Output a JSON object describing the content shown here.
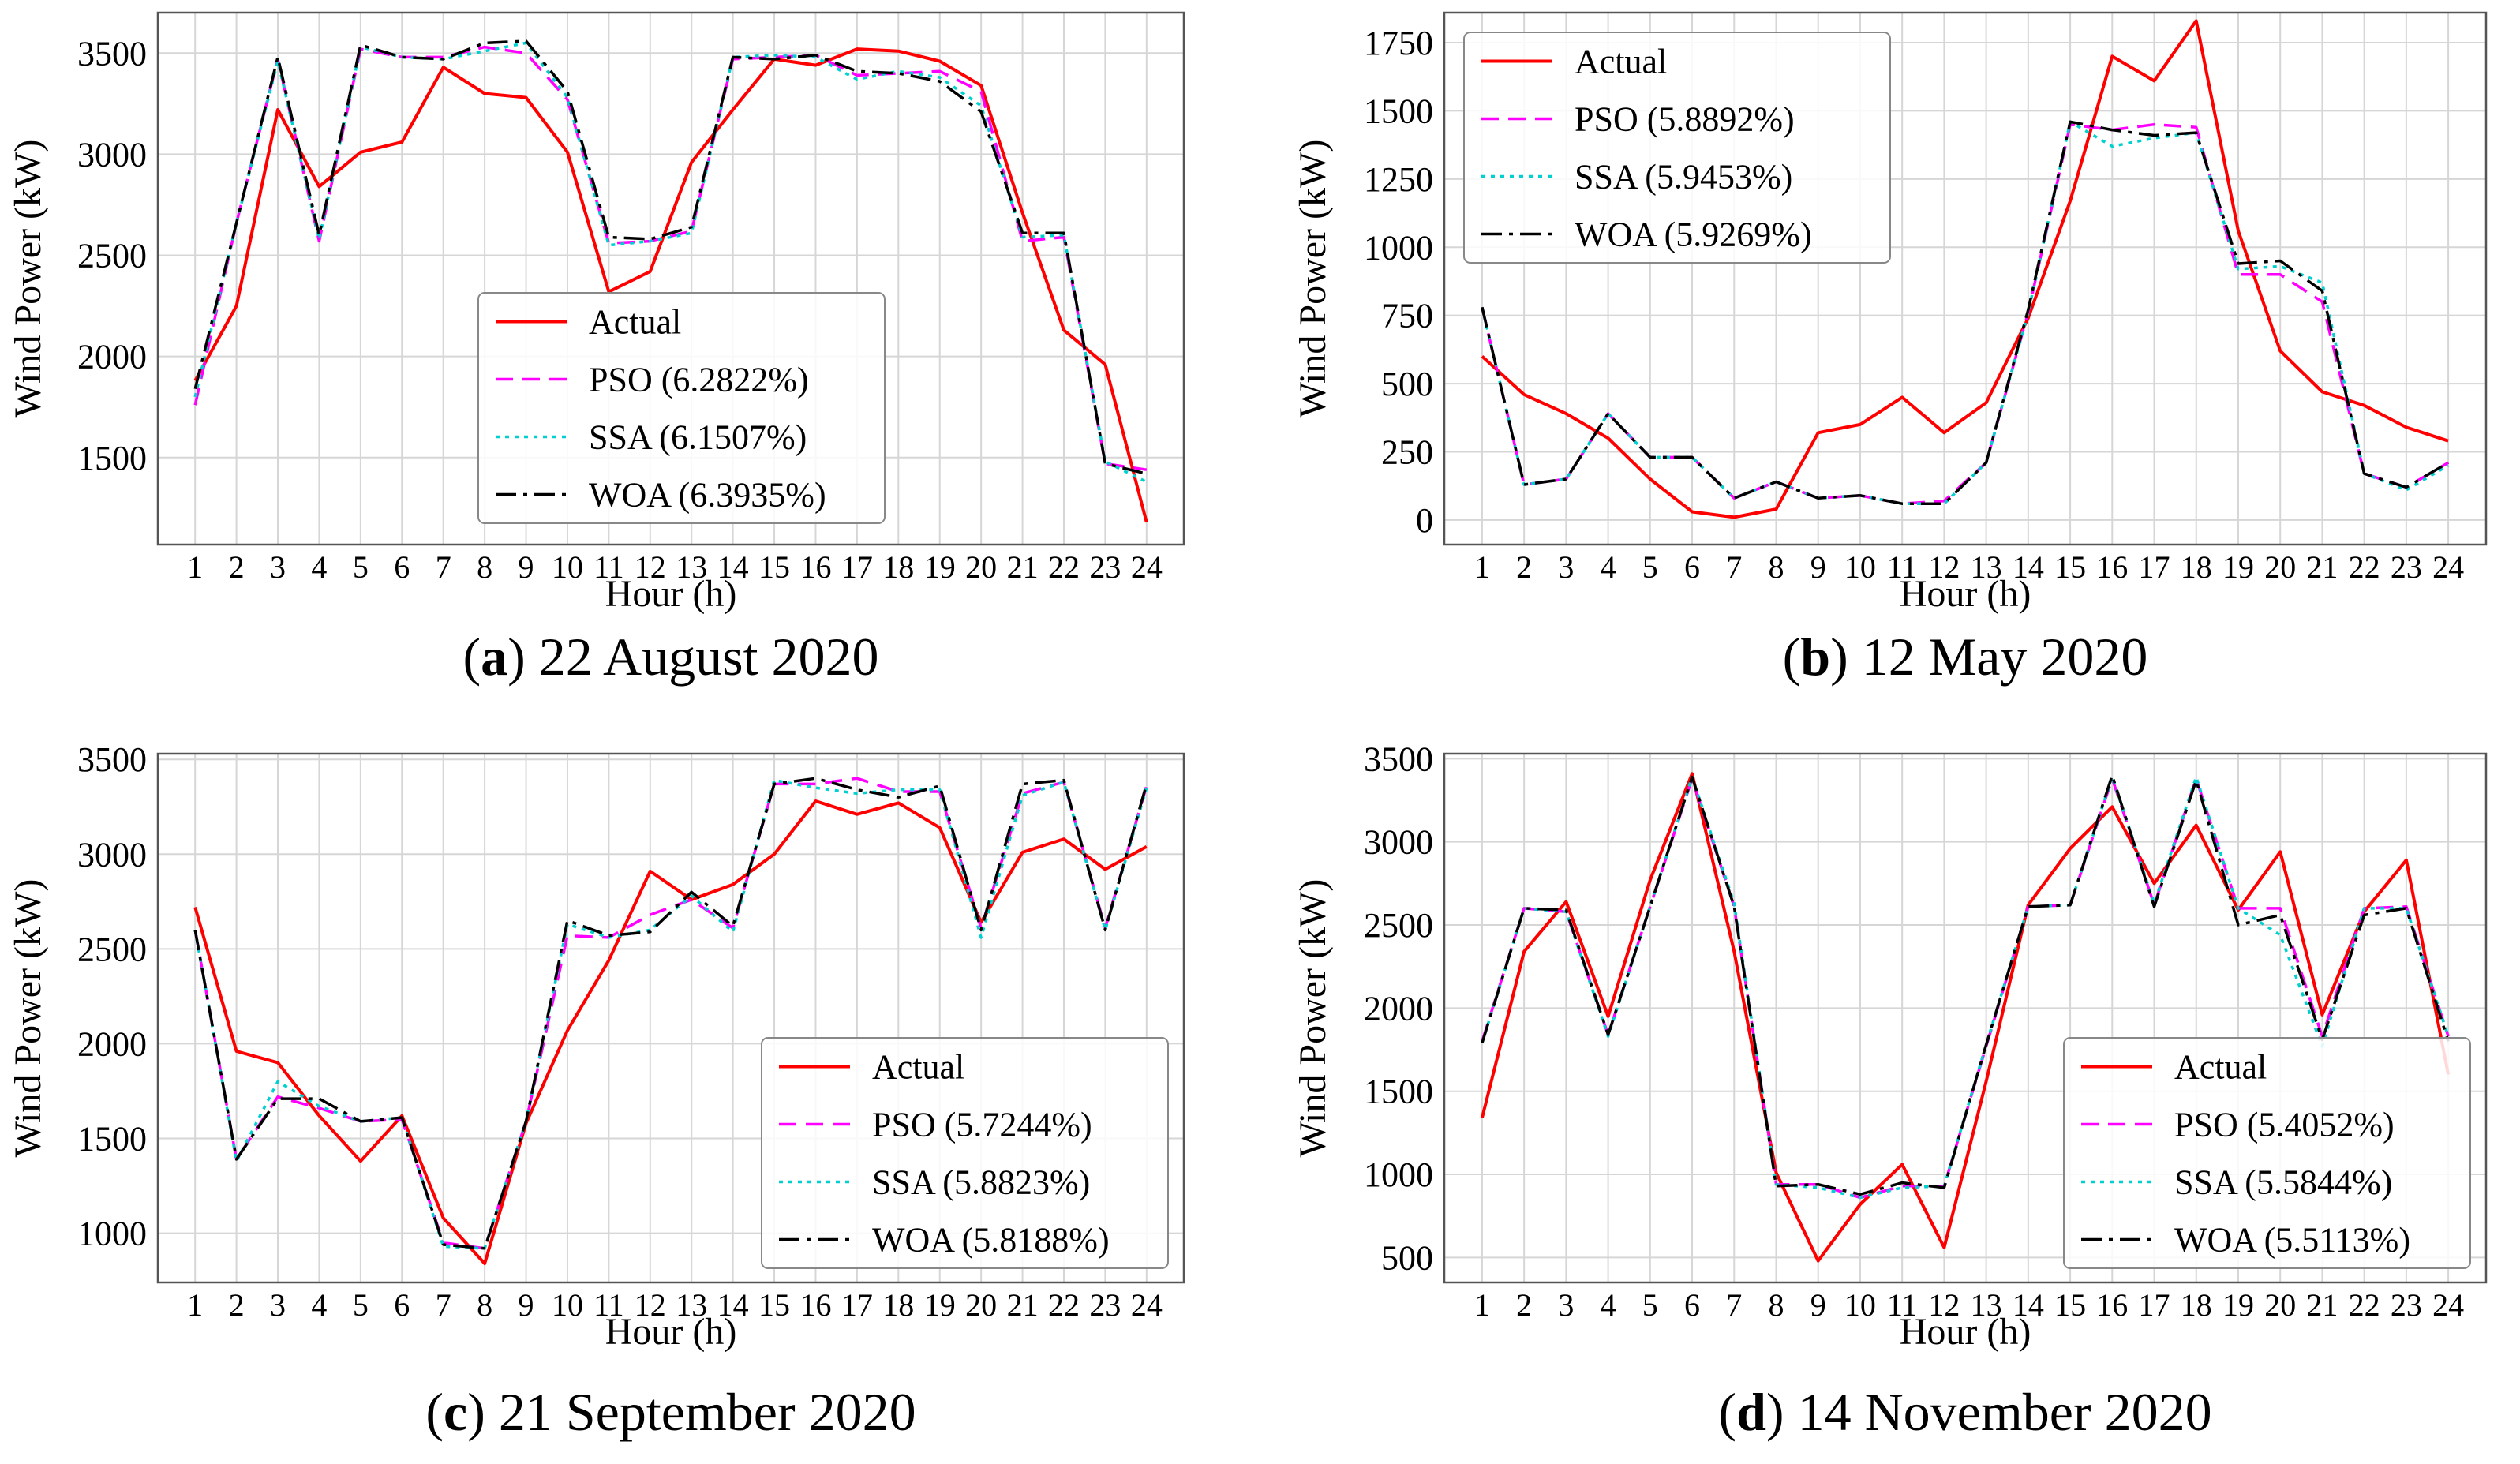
{
  "panels": [
    {
      "id": "a",
      "caption_letter": "a",
      "caption_text": " 22 August 2020",
      "chart_data": {
        "type": "line",
        "xlabel": "Hour (h)",
        "ylabel": "Wind Power (kW)",
        "x": [
          1,
          2,
          3,
          4,
          5,
          6,
          7,
          8,
          9,
          10,
          11,
          12,
          13,
          14,
          15,
          16,
          17,
          18,
          19,
          20,
          21,
          22,
          23,
          24
        ],
        "xlim": [
          0.1,
          24.9
        ],
        "ylim": [
          1070,
          3700
        ],
        "yticks": [
          1500,
          2000,
          2500,
          3000,
          3500
        ],
        "grid": true,
        "legend_position": "lower-center",
        "series": [
          {
            "name": "Actual",
            "label": "Actual",
            "color": "#ff0000",
            "dash": "solid",
            "values": [
              1880,
              2250,
              3220,
              2840,
              3010,
              3060,
              3430,
              3300,
              3280,
              3010,
              2320,
              2420,
              2960,
              3220,
              3470,
              3440,
              3520,
              3510,
              3460,
              3340,
              2710,
              2130,
              1960,
              1180
            ]
          },
          {
            "name": "PSO",
            "label": "PSO (6.2822%)",
            "color": "#ff00ff",
            "dash": "dashed",
            "values": [
              1760,
              2660,
              3470,
              2570,
              3520,
              3480,
              3480,
              3530,
              3500,
              3270,
              2560,
              2570,
              2620,
              3470,
              3480,
              3490,
              3390,
              3400,
              3410,
              3310,
              2570,
              2590,
              1470,
              1440
            ]
          },
          {
            "name": "SSA",
            "label": "SSA (6.1507%)",
            "color": "#00d0d0",
            "dash": "dotted",
            "values": [
              1800,
              2660,
              3460,
              2580,
              3530,
              3480,
              3470,
              3510,
              3550,
              3280,
              2550,
              2570,
              2610,
              3480,
              3490,
              3480,
              3370,
              3410,
              3380,
              3240,
              2590,
              2600,
              1480,
              1380
            ]
          },
          {
            "name": "WOA",
            "label": "WOA (6.3935%)",
            "color": "#000000",
            "dash": "dashdot",
            "values": [
              1840,
              2660,
              3480,
              2600,
              3540,
              3480,
              3470,
              3550,
              3560,
              3310,
              2590,
              2580,
              2640,
              3480,
              3470,
              3490,
              3410,
              3400,
              3360,
              3210,
              2610,
              2610,
              1470,
              1420
            ]
          }
        ]
      }
    },
    {
      "id": "b",
      "caption_letter": "b",
      "caption_text": " 12 May 2020",
      "chart_data": {
        "type": "line",
        "xlabel": "Hour (h)",
        "ylabel": "Wind Power (kW)",
        "x": [
          1,
          2,
          3,
          4,
          5,
          6,
          7,
          8,
          9,
          10,
          11,
          12,
          13,
          14,
          15,
          16,
          17,
          18,
          19,
          20,
          21,
          22,
          23,
          24
        ],
        "xlim": [
          0.1,
          24.9
        ],
        "ylim": [
          -90,
          1860
        ],
        "yticks": [
          0,
          250,
          500,
          750,
          1000,
          1250,
          1500,
          1750
        ],
        "grid": true,
        "legend_position": "top-left",
        "series": [
          {
            "name": "Actual",
            "label": "Actual",
            "color": "#ff0000",
            "dash": "solid",
            "values": [
              600,
              460,
              390,
              300,
              150,
              30,
              10,
              40,
              320,
              350,
              450,
              320,
              430,
              740,
              1170,
              1700,
              1610,
              1830,
              1060,
              620,
              470,
              420,
              340,
              290
            ]
          },
          {
            "name": "PSO",
            "label": "PSO (5.8892%)",
            "color": "#ff00ff",
            "dash": "dashed",
            "values": [
              780,
              130,
              150,
              390,
              230,
              230,
              80,
              140,
              80,
              90,
              60,
              70,
              210,
              760,
              1450,
              1430,
              1450,
              1440,
              900,
              900,
              800,
              170,
              120,
              210
            ]
          },
          {
            "name": "SSA",
            "label": "SSA (5.9453%)",
            "color": "#00d0d0",
            "dash": "dotted",
            "values": [
              780,
              130,
              150,
              390,
              230,
              230,
              80,
              140,
              80,
              90,
              60,
              60,
              210,
              760,
              1460,
              1370,
              1400,
              1420,
              920,
              930,
              870,
              170,
              110,
              200
            ]
          },
          {
            "name": "WOA",
            "label": "WOA (5.9269%)",
            "color": "#000000",
            "dash": "dashdot",
            "values": [
              780,
              130,
              150,
              390,
              230,
              230,
              80,
              140,
              80,
              90,
              60,
              60,
              210,
              770,
              1460,
              1430,
              1410,
              1420,
              940,
              950,
              840,
              170,
              120,
              210
            ]
          }
        ]
      }
    },
    {
      "id": "c",
      "caption_letter": "c",
      "caption_text": " 21 September 2020",
      "chart_data": {
        "type": "line",
        "xlabel": "Hour (h)",
        "ylabel": "Wind Power (kW)",
        "x": [
          1,
          2,
          3,
          4,
          5,
          6,
          7,
          8,
          9,
          10,
          11,
          12,
          13,
          14,
          15,
          16,
          17,
          18,
          19,
          20,
          21,
          22,
          23,
          24
        ],
        "xlim": [
          0.1,
          24.9
        ],
        "ylim": [
          740,
          3530
        ],
        "yticks": [
          1000,
          1500,
          2000,
          2500,
          3000,
          3500
        ],
        "grid": true,
        "legend_position": "lower-right",
        "series": [
          {
            "name": "Actual",
            "label": "Actual",
            "color": "#ff0000",
            "dash": "solid",
            "values": [
              2720,
              1960,
              1900,
              1620,
              1380,
              1620,
              1080,
              840,
              1580,
              2070,
              2440,
              2910,
              2760,
              2840,
              3000,
              3280,
              3210,
              3270,
              3140,
              2640,
              3010,
              3080,
              2920,
              3040
            ]
          },
          {
            "name": "PSO",
            "label": "PSO (5.7244%)",
            "color": "#ff00ff",
            "dash": "dashed",
            "values": [
              2600,
              1390,
              1720,
              1660,
              1590,
              1600,
              950,
              920,
              1590,
              2570,
              2560,
              2680,
              2760,
              2610,
              3370,
              3370,
              3400,
              3330,
              3330,
              2610,
              3320,
              3380,
              2610,
              3360
            ]
          },
          {
            "name": "SSA",
            "label": "SSA (5.8823%)",
            "color": "#00d0d0",
            "dash": "dotted",
            "values": [
              2600,
              1380,
              1800,
              1670,
              1590,
              1610,
              930,
              920,
              1590,
              2630,
              2560,
              2600,
              2780,
              2590,
              3390,
              3350,
              3320,
              3340,
              3340,
              2560,
              3310,
              3380,
              2600,
              3350
            ]
          },
          {
            "name": "WOA",
            "label": "WOA (5.8188%)",
            "color": "#000000",
            "dash": "dashdot",
            "values": [
              2600,
              1390,
              1710,
              1710,
              1590,
              1610,
              940,
              920,
              1590,
              2650,
              2570,
              2590,
              2800,
              2620,
              3370,
              3400,
              3340,
              3300,
              3360,
              2600,
              3370,
              3390,
              2600,
              3370
            ]
          }
        ]
      }
    },
    {
      "id": "d",
      "caption_letter": "d",
      "caption_text": " 14 November 2020",
      "chart_data": {
        "type": "line",
        "xlabel": "Hour (h)",
        "ylabel": "Wind Power (kW)",
        "x": [
          1,
          2,
          3,
          4,
          5,
          6,
          7,
          8,
          9,
          10,
          11,
          12,
          13,
          14,
          15,
          16,
          17,
          18,
          19,
          20,
          21,
          22,
          23,
          24
        ],
        "xlim": [
          0.1,
          24.9
        ],
        "ylim": [
          350,
          3530
        ],
        "yticks": [
          500,
          1000,
          1500,
          2000,
          2500,
          3000,
          3500
        ],
        "grid": true,
        "legend_position": "lower-right",
        "series": [
          {
            "name": "Actual",
            "label": "Actual",
            "color": "#ff0000",
            "dash": "solid",
            "values": [
              1340,
              2340,
              2640,
              1950,
              2770,
              3410,
              2340,
              1010,
              480,
              820,
              1060,
              560,
              1560,
              2620,
              2960,
              3210,
              2750,
              3100,
              2590,
              2940,
              1960,
              2580,
              2890,
              1600
            ]
          },
          {
            "name": "PSO",
            "label": "PSO (5.4052%)",
            "color": "#ff00ff",
            "dash": "dashed",
            "values": [
              1800,
              2600,
              2580,
              1840,
              2610,
              3380,
              2610,
              940,
              940,
              860,
              930,
              930,
              1770,
              2610,
              2620,
              3380,
              2620,
              3380,
              2600,
              2600,
              1830,
              2600,
              2610,
              1830
            ]
          },
          {
            "name": "SSA",
            "label": "SSA (5.5844%)",
            "color": "#00d0d0",
            "dash": "dotted",
            "values": [
              1790,
              2600,
              2580,
              1830,
              2610,
              3390,
              2630,
              940,
              920,
              860,
              920,
              930,
              1780,
              2610,
              2620,
              3390,
              2630,
              3390,
              2600,
              2440,
              1770,
              2600,
              2600,
              1830
            ]
          },
          {
            "name": "WOA",
            "label": "WOA (5.5113%)",
            "color": "#000000",
            "dash": "dashdot",
            "values": [
              1790,
              2600,
              2590,
              1840,
              2610,
              3390,
              2610,
              930,
              940,
              880,
              950,
              920,
              1780,
              2610,
              2620,
              3400,
              2610,
              3370,
              2500,
              2560,
              1810,
              2560,
              2600,
              1800
            ]
          }
        ]
      }
    }
  ]
}
